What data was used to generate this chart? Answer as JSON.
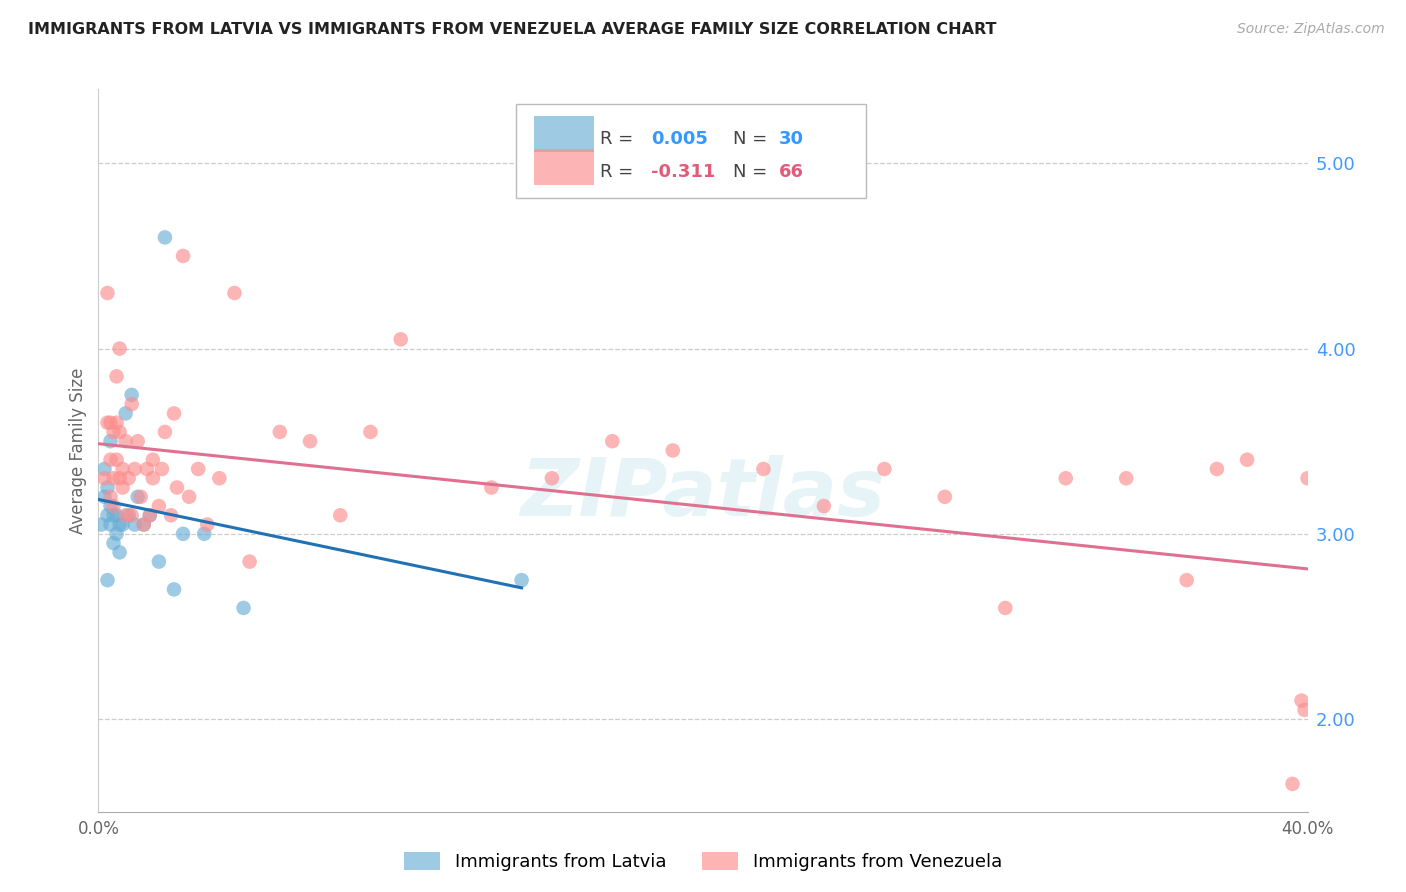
{
  "title": "IMMIGRANTS FROM LATVIA VS IMMIGRANTS FROM VENEZUELA AVERAGE FAMILY SIZE CORRELATION CHART",
  "source": "Source: ZipAtlas.com",
  "ylabel": "Average Family Size",
  "xlim": [
    0.0,
    0.4
  ],
  "ylim": [
    1.5,
    5.4
  ],
  "right_yticks": [
    2.0,
    3.0,
    4.0,
    5.0
  ],
  "x_ticks": [
    0.0,
    0.05,
    0.1,
    0.15,
    0.2,
    0.25,
    0.3,
    0.35,
    0.4
  ],
  "x_tick_labels": [
    "0.0%",
    "",
    "",
    "",
    "",
    "",
    "",
    "",
    "40.0%"
  ],
  "latvia_color": "#6baed6",
  "venezuela_color": "#fc8d8d",
  "latvia_line_color": "#2171b5",
  "venezuela_line_color": "#e07090",
  "blue_text": "#3399ff",
  "pink_text": "#e05c7a",
  "watermark": "ZIPatlas",
  "latvia_x": [
    0.001,
    0.002,
    0.002,
    0.003,
    0.003,
    0.003,
    0.004,
    0.004,
    0.004,
    0.005,
    0.005,
    0.006,
    0.006,
    0.007,
    0.007,
    0.008,
    0.009,
    0.01,
    0.011,
    0.012,
    0.013,
    0.015,
    0.017,
    0.02,
    0.022,
    0.025,
    0.028,
    0.035,
    0.048,
    0.14
  ],
  "latvia_y": [
    3.05,
    3.2,
    3.35,
    2.75,
    3.1,
    3.25,
    3.05,
    3.15,
    3.5,
    2.95,
    3.1,
    3.0,
    3.1,
    2.9,
    3.05,
    3.05,
    3.65,
    3.1,
    3.75,
    3.05,
    3.2,
    3.05,
    3.1,
    2.85,
    4.6,
    2.7,
    3.0,
    3.0,
    2.6,
    2.75
  ],
  "venezuela_x": [
    0.002,
    0.003,
    0.003,
    0.004,
    0.004,
    0.004,
    0.005,
    0.005,
    0.005,
    0.006,
    0.006,
    0.006,
    0.007,
    0.007,
    0.007,
    0.008,
    0.008,
    0.009,
    0.009,
    0.01,
    0.011,
    0.011,
    0.012,
    0.013,
    0.014,
    0.015,
    0.016,
    0.017,
    0.018,
    0.018,
    0.02,
    0.021,
    0.022,
    0.024,
    0.025,
    0.026,
    0.028,
    0.03,
    0.033,
    0.036,
    0.04,
    0.045,
    0.05,
    0.06,
    0.07,
    0.08,
    0.09,
    0.1,
    0.13,
    0.15,
    0.17,
    0.19,
    0.22,
    0.24,
    0.26,
    0.28,
    0.3,
    0.32,
    0.34,
    0.36,
    0.37,
    0.38,
    0.395,
    0.398,
    0.399,
    0.4
  ],
  "venezuela_y": [
    3.3,
    4.3,
    3.6,
    3.4,
    3.2,
    3.6,
    3.15,
    3.3,
    3.55,
    3.85,
    3.4,
    3.6,
    3.3,
    3.55,
    4.0,
    3.25,
    3.35,
    3.1,
    3.5,
    3.3,
    3.1,
    3.7,
    3.35,
    3.5,
    3.2,
    3.05,
    3.35,
    3.1,
    3.3,
    3.4,
    3.15,
    3.35,
    3.55,
    3.1,
    3.65,
    3.25,
    4.5,
    3.2,
    3.35,
    3.05,
    3.3,
    4.3,
    2.85,
    3.55,
    3.5,
    3.1,
    3.55,
    4.05,
    3.25,
    3.3,
    3.5,
    3.45,
    3.35,
    3.15,
    3.35,
    3.2,
    2.6,
    3.3,
    3.3,
    2.75,
    3.35,
    3.4,
    1.65,
    2.1,
    2.05,
    3.3
  ]
}
